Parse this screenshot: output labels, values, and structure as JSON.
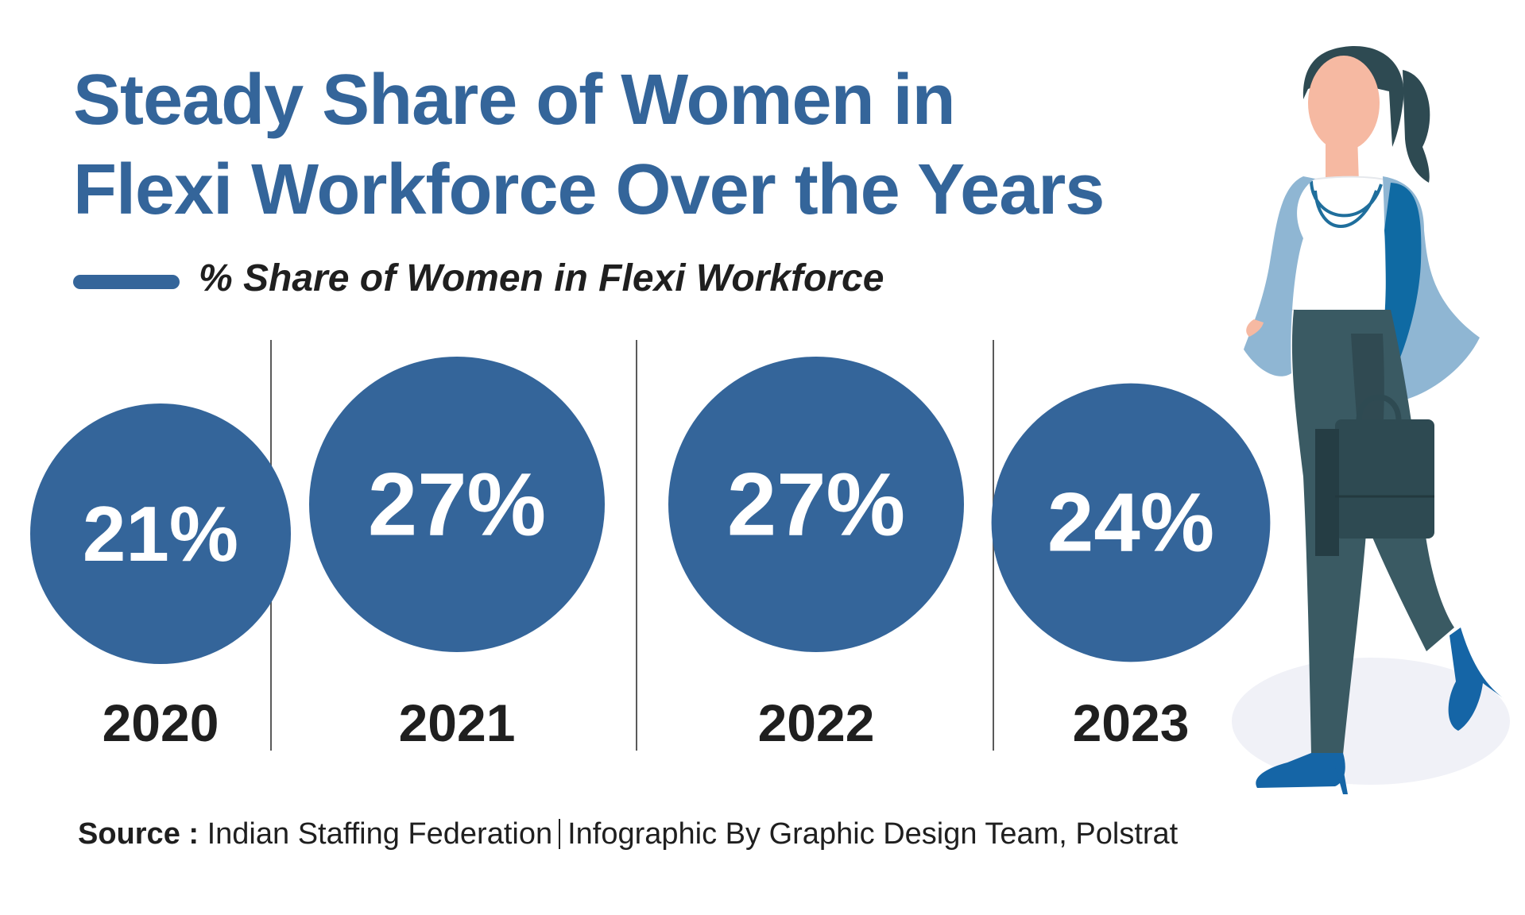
{
  "title_lines": [
    "Steady Share of Women in",
    "Flexi Workforce Over the Years"
  ],
  "legend": {
    "label": "% Share of Women in Flexi Workforce",
    "color": "#34659a"
  },
  "chart_data": {
    "type": "bubble",
    "title": "Steady Share of Women in Flexi Workforce Over the Years",
    "categories": [
      "2020",
      "2021",
      "2022",
      "2023"
    ],
    "series": [
      {
        "name": "% Share of Women in Flexi Workforce",
        "values": [
          21,
          27,
          27,
          24
        ],
        "labels": [
          "21%",
          "27%",
          "27%",
          "24%"
        ]
      }
    ],
    "unit": "%",
    "color": "#34659a"
  },
  "footer": {
    "source_label": "Source :",
    "source_name": "Indian Staffing Federation",
    "credit": "Infographic By Graphic Design Team, Polstrat"
  },
  "illustration": {
    "name": "woman-with-briefcase-illustration"
  }
}
